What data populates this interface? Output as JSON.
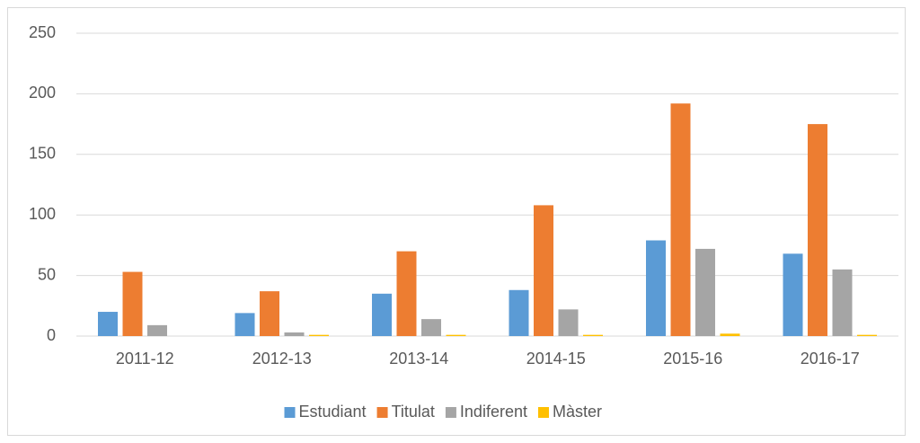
{
  "chart_data": {
    "type": "bar",
    "categories": [
      "2011-12",
      "2012-13",
      "2013-14",
      "2014-15",
      "2015-16",
      "2016-17"
    ],
    "series": [
      {
        "name": "Estudiant",
        "color": "#5b9bd5",
        "values": [
          20,
          19,
          35,
          38,
          79,
          68
        ]
      },
      {
        "name": "Titulat",
        "color": "#ed7d31",
        "values": [
          53,
          37,
          70,
          108,
          192,
          175
        ]
      },
      {
        "name": "Indiferent",
        "color": "#a5a5a5",
        "values": [
          9,
          3,
          14,
          22,
          72,
          55
        ]
      },
      {
        "name": "Màster",
        "color": "#ffc000",
        "values": [
          0,
          1,
          1,
          1,
          2,
          1
        ]
      }
    ],
    "ylim": [
      0,
      250
    ],
    "yticks": [
      0,
      50,
      100,
      150,
      200,
      250
    ],
    "grid": true,
    "legend": "bottom"
  }
}
